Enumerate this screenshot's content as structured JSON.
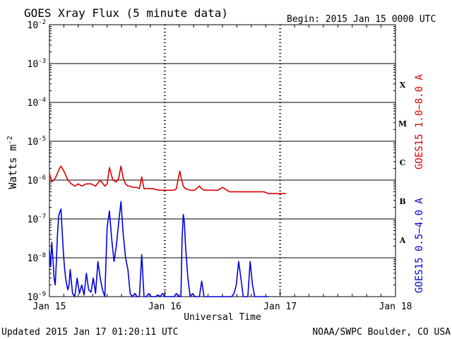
{
  "chart_data": {
    "type": "line",
    "title": "GOES Xray Flux (5 minute data)",
    "begin_text": "Begin:  2015 Jan 15 0000 UTC",
    "xlabel": "Universal Time",
    "ylabel": "Watts m",
    "ylabel_exponent": "-2",
    "x_tick_labels": [
      "Jan 15",
      "Jan 16",
      "Jan 17",
      "Jan 18"
    ],
    "x_range_days": [
      0,
      3
    ],
    "y_scale": "log",
    "ylim": [
      1e-09,
      0.01
    ],
    "y_tick_labels": [
      {
        "base": "10",
        "exp": "-9",
        "value": 1e-09
      },
      {
        "base": "10",
        "exp": "-8",
        "value": 1e-08
      },
      {
        "base": "10",
        "exp": "-7",
        "value": 1e-07
      },
      {
        "base": "10",
        "exp": "-6",
        "value": 1e-06
      },
      {
        "base": "10",
        "exp": "-5",
        "value": 1e-05
      },
      {
        "base": "10",
        "exp": "-4",
        "value": 0.0001
      },
      {
        "base": "10",
        "exp": "-3",
        "value": 0.001
      },
      {
        "base": "10",
        "exp": "-2",
        "value": 0.01
      }
    ],
    "flare_classes": [
      {
        "label": "X",
        "value": 0.0003
      },
      {
        "label": "M",
        "value": 3e-05
      },
      {
        "label": "C",
        "value": 3e-06
      },
      {
        "label": "B",
        "value": 3e-07
      },
      {
        "label": "A",
        "value": 3e-08
      }
    ],
    "grid": "horizontal at decades, dashed vertical at day boundaries",
    "series": [
      {
        "name": "GOES15 1.0−8.0 A",
        "color": "#dd0000",
        "x": [
          0,
          0.02,
          0.05,
          0.08,
          0.1,
          0.13,
          0.16,
          0.19,
          0.22,
          0.25,
          0.28,
          0.32,
          0.36,
          0.4,
          0.44,
          0.48,
          0.5,
          0.52,
          0.55,
          0.58,
          0.6,
          0.62,
          0.64,
          0.66,
          0.68,
          0.7,
          0.72,
          0.74,
          0.76,
          0.78,
          0.8,
          0.82,
          0.84,
          0.86,
          0.9,
          0.95,
          1.0,
          1.02,
          1.04,
          1.06,
          1.08,
          1.1,
          1.12,
          1.13,
          1.14,
          1.16,
          1.18,
          1.22,
          1.26,
          1.3,
          1.32,
          1.34,
          1.36,
          1.4,
          1.46,
          1.5,
          1.56,
          1.6,
          1.64,
          1.7,
          1.76,
          1.8,
          1.86,
          1.9,
          1.96,
          2.0,
          2.05
        ],
        "y": [
          1.5e-06,
          9e-07,
          1.1e-06,
          1.8e-06,
          2.3e-06,
          1.6e-06,
          1e-06,
          8e-07,
          7e-07,
          8e-07,
          7e-07,
          8e-07,
          8e-07,
          7e-07,
          1e-06,
          7e-07,
          8e-07,
          2.1e-06,
          1e-06,
          9e-07,
          1.1e-06,
          2.3e-06,
          1.1e-06,
          8e-07,
          7e-07,
          7e-07,
          6.5e-07,
          6.5e-07,
          6.5e-07,
          6e-07,
          1.2e-06,
          6e-07,
          6e-07,
          6e-07,
          6e-07,
          5.5e-07,
          5.5e-07,
          5.5e-07,
          5.5e-07,
          5.5e-07,
          5.5e-07,
          6e-07,
          1.2e-06,
          1.7e-06,
          1.2e-06,
          7e-07,
          6e-07,
          5.5e-07,
          5.5e-07,
          7e-07,
          6e-07,
          5.5e-07,
          5.5e-07,
          5.5e-07,
          5.5e-07,
          6.5e-07,
          5e-07,
          5e-07,
          5e-07,
          5e-07,
          5e-07,
          5e-07,
          5e-07,
          4.5e-07,
          4.5e-07,
          4.5e-07,
          4.5e-07
        ]
      },
      {
        "name": "GOES15 0.5−4.0 A",
        "color": "#0000dd",
        "x": [
          0,
          0.01,
          0.02,
          0.03,
          0.04,
          0.05,
          0.06,
          0.07,
          0.08,
          0.09,
          0.1,
          0.11,
          0.12,
          0.13,
          0.14,
          0.15,
          0.16,
          0.17,
          0.18,
          0.2,
          0.22,
          0.24,
          0.26,
          0.28,
          0.3,
          0.32,
          0.34,
          0.36,
          0.38,
          0.4,
          0.42,
          0.44,
          0.46,
          0.48,
          0.5,
          0.52,
          0.54,
          0.56,
          0.58,
          0.6,
          0.62,
          0.64,
          0.66,
          0.68,
          0.7,
          0.72,
          0.74,
          0.76,
          0.78,
          0.8,
          0.82,
          0.84,
          0.86,
          0.88,
          0.9,
          0.92,
          0.94,
          0.96,
          0.98,
          1.0,
          1.02,
          1.04,
          1.06,
          1.08,
          1.1,
          1.12,
          1.14,
          1.15,
          1.16,
          1.17,
          1.18,
          1.2,
          1.22,
          1.24,
          1.26,
          1.28,
          1.3,
          1.32,
          1.34,
          1.36,
          1.38,
          1.4,
          1.42,
          1.44,
          1.46,
          1.48,
          1.5,
          1.52,
          1.54,
          1.56,
          1.58,
          1.6,
          1.62,
          1.64,
          1.66,
          1.68,
          1.7,
          1.72,
          1.74,
          1.76,
          1.78,
          1.8,
          1.82,
          1.84,
          1.86,
          1.88,
          1.9
        ],
        "y": [
          1.5e-08,
          6e-09,
          2.5e-08,
          1e-08,
          3e-09,
          2e-09,
          8e-09,
          4e-08,
          1.2e-07,
          1.5e-07,
          1.8e-07,
          5e-08,
          1.5e-08,
          6e-09,
          3e-09,
          2e-09,
          1.5e-09,
          2e-09,
          5e-09,
          1.2e-09,
          1e-09,
          3e-09,
          1.2e-09,
          2e-09,
          1.1e-09,
          4e-09,
          1.5e-09,
          1.3e-09,
          3e-09,
          1.2e-09,
          8e-09,
          3e-09,
          1.5e-09,
          1e-09,
          6e-08,
          1.6e-07,
          3e-08,
          8e-09,
          2e-08,
          8e-08,
          2.8e-07,
          4e-08,
          1e-08,
          5e-09,
          1.2e-09,
          1e-09,
          1.2e-09,
          1e-09,
          1e-09,
          1.2e-08,
          1e-09,
          1e-09,
          1.2e-09,
          1e-09,
          1e-09,
          1e-09,
          1.1e-09,
          1e-09,
          1.2e-09,
          1e-09,
          1e-09,
          1e-09,
          1e-09,
          1e-09,
          1.2e-09,
          1e-09,
          1e-09,
          3e-08,
          1.3e-07,
          8e-08,
          2e-08,
          3e-09,
          1e-09,
          1.2e-09,
          1e-09,
          1e-09,
          1e-09,
          2.5e-09,
          1e-09,
          1e-09,
          1e-09,
          1e-09,
          1e-09,
          1e-09,
          1e-09,
          1e-09,
          1e-09,
          1e-09,
          1e-09,
          1e-09,
          1e-09,
          1.2e-09,
          2e-09,
          8e-09,
          3e-09,
          1e-09,
          1e-09,
          1e-09,
          8e-09,
          2e-09,
          1e-09,
          1e-09,
          1e-09,
          1e-09,
          1e-09,
          1e-09,
          1e-09
        ]
      }
    ],
    "footer_left": "Updated 2015 Jan 17 01:20:11 UTC",
    "footer_right": "NOAA/SWPC Boulder, CO USA"
  }
}
